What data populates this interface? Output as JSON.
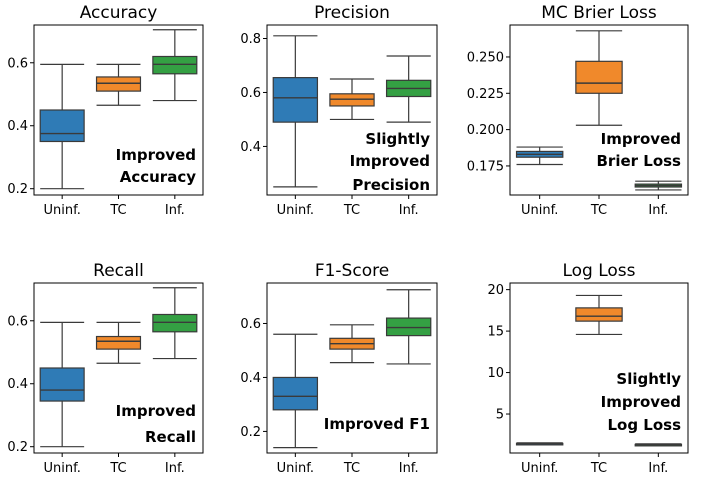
{
  "chart_data": [
    {
      "type": "box",
      "title": "Accuracy",
      "categories": [
        "Uninf.",
        "TC",
        "Inf."
      ],
      "colors": [
        "#2f7bb6",
        "#f0892b",
        "#34a043"
      ],
      "ylim": [
        0.18,
        0.72
      ],
      "yticks": [
        0.2,
        0.4,
        0.6
      ],
      "ytick_labels": [
        "0.2",
        "0.4",
        "0.6"
      ],
      "boxes": [
        {
          "min": 0.2,
          "q1": 0.35,
          "median": 0.375,
          "q3": 0.45,
          "max": 0.595
        },
        {
          "min": 0.465,
          "q1": 0.51,
          "median": 0.535,
          "q3": 0.555,
          "max": 0.595
        },
        {
          "min": 0.48,
          "q1": 0.565,
          "median": 0.595,
          "q3": 0.62,
          "max": 0.705
        }
      ],
      "annotation": [
        "Improved",
        "Accuracy"
      ]
    },
    {
      "type": "box",
      "title": "Precision",
      "categories": [
        "Uninf.",
        "TC",
        "Inf."
      ],
      "colors": [
        "#2f7bb6",
        "#f0892b",
        "#34a043"
      ],
      "ylim": [
        0.22,
        0.85
      ],
      "yticks": [
        0.4,
        0.6,
        0.8
      ],
      "ytick_labels": [
        "0.4",
        "0.6",
        "0.8"
      ],
      "boxes": [
        {
          "min": 0.25,
          "q1": 0.49,
          "median": 0.58,
          "q3": 0.655,
          "max": 0.81
        },
        {
          "min": 0.5,
          "q1": 0.55,
          "median": 0.575,
          "q3": 0.595,
          "max": 0.65
        },
        {
          "min": 0.49,
          "q1": 0.585,
          "median": 0.615,
          "q3": 0.645,
          "max": 0.735
        }
      ],
      "annotation": [
        "Slightly",
        "Improved",
        "Precision"
      ]
    },
    {
      "type": "box",
      "title": "MC Brier Loss",
      "categories": [
        "Uninf.",
        "TC",
        "Inf."
      ],
      "colors": [
        "#2f7bb6",
        "#f0892b",
        "#34a043"
      ],
      "ylim": [
        0.155,
        0.272
      ],
      "yticks": [
        0.175,
        0.2,
        0.225,
        0.25
      ],
      "ytick_labels": [
        "0.175",
        "0.200",
        "0.225",
        "0.250"
      ],
      "boxes": [
        {
          "min": 0.176,
          "q1": 0.181,
          "median": 0.183,
          "q3": 0.185,
          "max": 0.188
        },
        {
          "min": 0.203,
          "q1": 0.225,
          "median": 0.232,
          "q3": 0.247,
          "max": 0.268
        },
        {
          "min": 0.1585,
          "q1": 0.1605,
          "median": 0.1615,
          "q3": 0.1625,
          "max": 0.1645
        }
      ],
      "annotation": [
        "Improved",
        "Brier Loss"
      ]
    },
    {
      "type": "box",
      "title": "Recall",
      "categories": [
        "Uninf.",
        "TC",
        "Inf."
      ],
      "colors": [
        "#2f7bb6",
        "#f0892b",
        "#34a043"
      ],
      "ylim": [
        0.18,
        0.72
      ],
      "yticks": [
        0.2,
        0.4,
        0.6
      ],
      "ytick_labels": [
        "0.2",
        "0.4",
        "0.6"
      ],
      "boxes": [
        {
          "min": 0.2,
          "q1": 0.345,
          "median": 0.38,
          "q3": 0.45,
          "max": 0.595
        },
        {
          "min": 0.465,
          "q1": 0.51,
          "median": 0.535,
          "q3": 0.55,
          "max": 0.595
        },
        {
          "min": 0.48,
          "q1": 0.565,
          "median": 0.595,
          "q3": 0.62,
          "max": 0.705
        }
      ],
      "annotation": [
        "Improved",
        "Recall"
      ]
    },
    {
      "type": "box",
      "title": "F1-Score",
      "categories": [
        "Uninf.",
        "TC",
        "Inf."
      ],
      "colors": [
        "#2f7bb6",
        "#f0892b",
        "#34a043"
      ],
      "ylim": [
        0.12,
        0.75
      ],
      "yticks": [
        0.2,
        0.4,
        0.6
      ],
      "ytick_labels": [
        "0.2",
        "0.4",
        "0.6"
      ],
      "boxes": [
        {
          "min": 0.14,
          "q1": 0.28,
          "median": 0.33,
          "q3": 0.4,
          "max": 0.56
        },
        {
          "min": 0.455,
          "q1": 0.505,
          "median": 0.525,
          "q3": 0.545,
          "max": 0.595
        },
        {
          "min": 0.45,
          "q1": 0.555,
          "median": 0.585,
          "q3": 0.62,
          "max": 0.725
        }
      ],
      "annotation": [
        "Improved F1"
      ]
    },
    {
      "type": "box",
      "title": "Log Loss",
      "categories": [
        "Uninf.",
        "TC",
        "Inf."
      ],
      "colors": [
        "#2f7bb6",
        "#f0892b",
        "#34a043"
      ],
      "ylim": [
        0.3,
        20.8
      ],
      "yticks": [
        5,
        10,
        15,
        20
      ],
      "ytick_labels": [
        "5",
        "10",
        "15",
        "20"
      ],
      "boxes": [
        {
          "min": 1.3,
          "q1": 1.38,
          "median": 1.42,
          "q3": 1.46,
          "max": 1.52
        },
        {
          "min": 14.6,
          "q1": 16.2,
          "median": 16.8,
          "q3": 17.8,
          "max": 19.3
        },
        {
          "min": 1.22,
          "q1": 1.28,
          "median": 1.31,
          "q3": 1.34,
          "max": 1.4
        }
      ],
      "annotation": [
        "Slightly",
        "Improved",
        "Log Loss"
      ]
    }
  ]
}
